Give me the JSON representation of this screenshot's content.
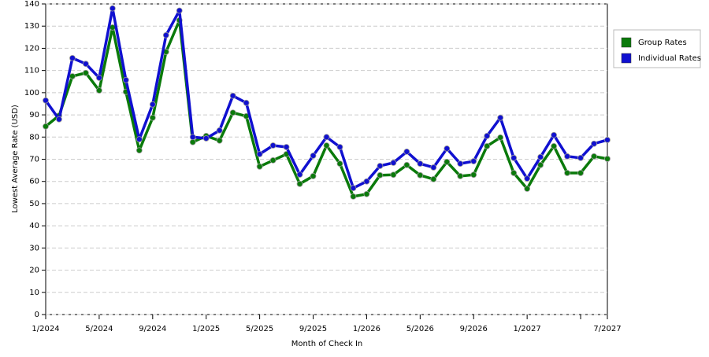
{
  "chart_data": {
    "type": "line",
    "x_label": "Month of Check In",
    "y_label": "Lowest Average Rate (USD)",
    "categories": [
      "1/2024",
      null,
      null,
      null,
      "5/2024",
      null,
      null,
      null,
      "9/2024",
      null,
      null,
      null,
      "1/2025",
      null,
      null,
      null,
      "5/2025",
      null,
      null,
      null,
      "9/2025",
      null,
      null,
      null,
      "1/2026",
      null,
      null,
      null,
      "5/2026",
      null,
      null,
      null,
      "9/2026",
      null,
      null,
      null,
      "1/2027",
      null,
      null,
      null,
      null,
      null,
      "7/2027"
    ],
    "series": [
      {
        "name": "Group Rates",
        "color": "#0a7a0a",
        "values": [
          84.8,
          89.7,
          107.4,
          108.9,
          101,
          129.4,
          100.4,
          74,
          88.7,
          118.4,
          132.6,
          77.7,
          80.5,
          78.4,
          91,
          89.4,
          66.7,
          69.5,
          72.3,
          58.9,
          62.4,
          76.2,
          68,
          53.2,
          54.3,
          62.8,
          63,
          67.4,
          62.8,
          61,
          68.8,
          62.4,
          63,
          75.9,
          79.8,
          63.8,
          56.7,
          67.4,
          75.9,
          63.8,
          63.8,
          71.3,
          70.2
        ]
      },
      {
        "name": "Individual Rates",
        "color": "#1010d0",
        "values": [
          96.5,
          88,
          115.6,
          113,
          106.7,
          138,
          105.7,
          79,
          94.7,
          125.9,
          137,
          80,
          79.4,
          83,
          98.6,
          95.4,
          72.3,
          76.2,
          75.5,
          63.1,
          71.6,
          80,
          75.5,
          57,
          60,
          67,
          68.4,
          73.4,
          68,
          66.3,
          74.8,
          68,
          69.1,
          80.5,
          88.7,
          70.6,
          61.3,
          71,
          80.9,
          71.3,
          70.6,
          77,
          78.7
        ]
      }
    ],
    "ylim": [
      0,
      140
    ],
    "yticks": [
      0,
      10,
      20,
      30,
      40,
      50,
      60,
      70,
      80,
      90,
      100,
      110,
      120,
      130,
      140
    ],
    "grid": true,
    "legend": "right"
  }
}
